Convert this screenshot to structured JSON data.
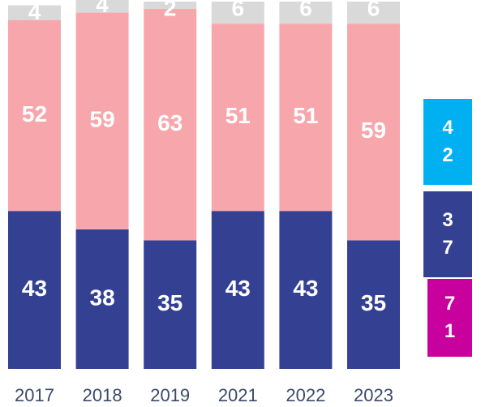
{
  "chart_data": {
    "type": "stacked_bar",
    "categories": [
      "2017",
      "2018",
      "2019",
      "2021",
      "2022",
      "2023"
    ],
    "series": [
      {
        "color": "#344192",
        "values": [
          43,
          38,
          35,
          43,
          43,
          35
        ]
      },
      {
        "color": "#f7a7ac",
        "values": [
          52,
          59,
          63,
          51,
          51,
          59
        ]
      },
      {
        "color": "#d9d9d9",
        "values": [
          4,
          4,
          2,
          6,
          6,
          6
        ]
      }
    ],
    "ylim": [
      0,
      100
    ]
  },
  "side_boxes": [
    {
      "value": 42,
      "color": "#00b0f0"
    },
    {
      "value": 37,
      "color": "#344192"
    },
    {
      "value": 71,
      "color": "#c8009d"
    }
  ]
}
